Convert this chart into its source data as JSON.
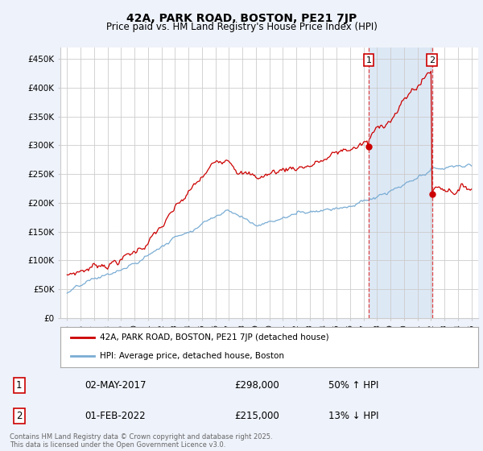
{
  "title": "42A, PARK ROAD, BOSTON, PE21 7JP",
  "subtitle": "Price paid vs. HM Land Registry's House Price Index (HPI)",
  "red_label": "42A, PARK ROAD, BOSTON, PE21 7JP (detached house)",
  "blue_label": "HPI: Average price, detached house, Boston",
  "annotation1": {
    "num": "1",
    "date": "02-MAY-2017",
    "price": "£298,000",
    "pct": "50% ↑ HPI"
  },
  "annotation2": {
    "num": "2",
    "date": "01-FEB-2022",
    "price": "£215,000",
    "pct": "13% ↓ HPI"
  },
  "vline1_x": 2017.37,
  "vline2_x": 2022.08,
  "point1_y": 298000,
  "point2_y": 215000,
  "ylim": [
    0,
    470000
  ],
  "yticks": [
    0,
    50000,
    100000,
    150000,
    200000,
    250000,
    300000,
    350000,
    400000,
    450000
  ],
  "ytick_labels": [
    "£0",
    "£50K",
    "£100K",
    "£150K",
    "£200K",
    "£250K",
    "£300K",
    "£350K",
    "£400K",
    "£450K"
  ],
  "xlim": [
    1994.5,
    2025.5
  ],
  "background_color": "#eef2fa",
  "plot_bg_color": "#ffffff",
  "shade_color": "#dde8f5",
  "grid_color": "#cccccc",
  "red_color": "#cc0000",
  "blue_color": "#7aadd4",
  "vline_color": "#dd4444",
  "footnote": "Contains HM Land Registry data © Crown copyright and database right 2025.\nThis data is licensed under the Open Government Licence v3.0."
}
